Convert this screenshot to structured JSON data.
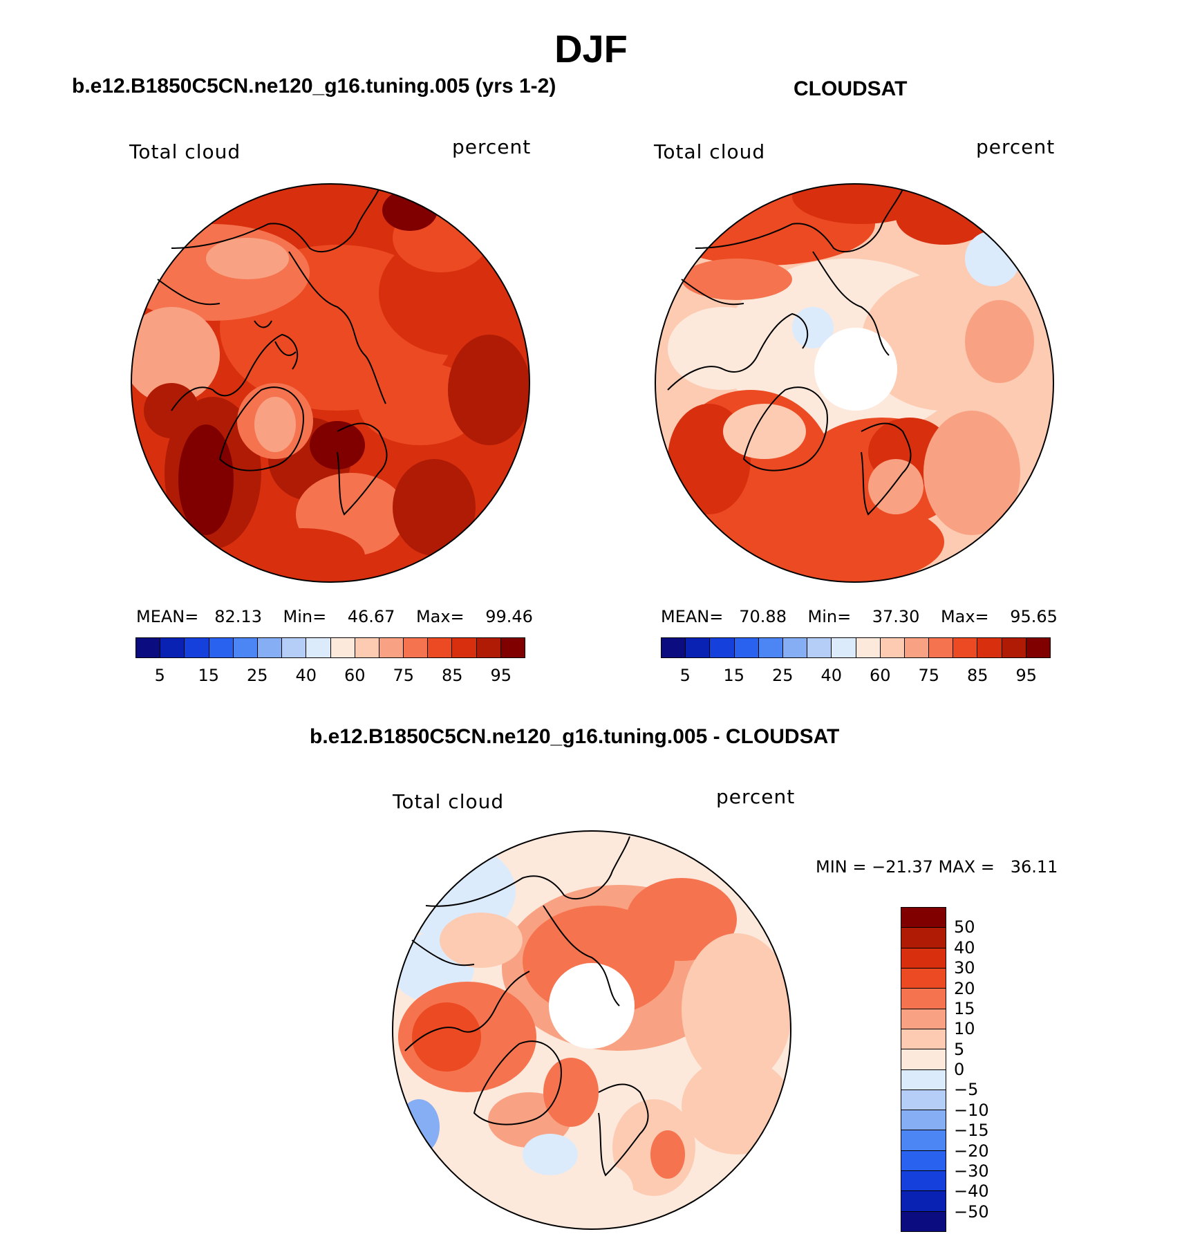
{
  "title": "DJF",
  "panels": {
    "model": {
      "title": "b.e12.B1850C5CN.ne120_g16.tuning.005 (yrs 1-2)",
      "left_label": "Total cloud",
      "right_label": "percent",
      "mean_label": "MEAN=",
      "mean": "82.13",
      "min_label": "Min=",
      "min": "46.67",
      "max_label": "Max=",
      "max": "99.46"
    },
    "obs": {
      "title": "CLOUDSAT",
      "left_label": "Total cloud",
      "right_label": "percent",
      "mean_label": "MEAN=",
      "mean": "70.88",
      "min_label": "Min=",
      "min": "37.30",
      "max_label": "Max=",
      "max": "95.65"
    },
    "diff": {
      "title": "b.e12.B1850C5CN.ne120_g16.tuning.005 - CLOUDSAT",
      "left_label": "Total cloud",
      "right_label": "percent",
      "minmax_text": "MIN = −21.37 MAX =   36.11"
    }
  },
  "colorbars": {
    "abs_ticks": [
      "5",
      "15",
      "25",
      "40",
      "60",
      "75",
      "85",
      "95"
    ],
    "abs_colors": [
      "#0a0c80",
      "#0a22b4",
      "#1540dc",
      "#2a62f0",
      "#4c86f4",
      "#86aef4",
      "#b4cef8",
      "#dcebfc",
      "#fde9dc",
      "#fccbb2",
      "#f9a283",
      "#f5744f",
      "#ec4a22",
      "#d8300f",
      "#b01b05",
      "#800000"
    ],
    "diff_labels": [
      "50",
      "40",
      "30",
      "20",
      "15",
      "10",
      "5",
      "0",
      "−5",
      "−10",
      "−15",
      "−20",
      "−30",
      "−40",
      "−50"
    ],
    "diff_colors": [
      "#800000",
      "#b01b05",
      "#d8300f",
      "#ec4a22",
      "#f5744f",
      "#f9a283",
      "#fccbb2",
      "#fde9dc",
      "#dcebfc",
      "#b4cef8",
      "#86aef4",
      "#4c86f4",
      "#2a62f0",
      "#1540dc",
      "#0a22b4",
      "#0a0c80"
    ]
  }
}
